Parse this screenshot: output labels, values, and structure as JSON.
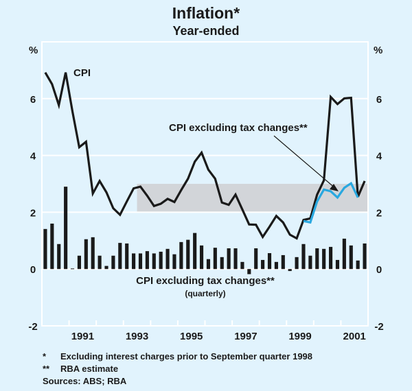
{
  "chart_data": {
    "type": "line",
    "title": "Inflation*",
    "subtitle": "Year-ended",
    "ylabel_left": "%",
    "ylabel_right": "%",
    "ylim": [
      -2,
      8
    ],
    "yticks": [
      -2,
      0,
      2,
      4,
      6
    ],
    "xlim": [
      1990.0,
      2002.0
    ],
    "xtick_labels": [
      "1991",
      "1993",
      "1995",
      "1997",
      "1999",
      "2001"
    ],
    "grid": true,
    "frequency": "quarterly",
    "start_quarter": "1990 Q1",
    "target_band": {
      "from": 2,
      "to": 3,
      "start": "1993 Q3",
      "end": "2001 Q4",
      "color": "#d2d5d9"
    },
    "series": [
      {
        "name": "CPI",
        "kind": "line",
        "color": "#1a1a1a",
        "start_index": 0,
        "values": [
          6.92,
          6.51,
          5.77,
          6.92,
          5.55,
          4.29,
          4.48,
          2.66,
          3.1,
          2.7,
          2.14,
          1.91,
          2.38,
          2.84,
          2.9,
          2.58,
          2.22,
          2.3,
          2.47,
          2.36,
          2.78,
          3.18,
          3.78,
          4.1,
          3.5,
          3.18,
          2.34,
          2.26,
          2.62,
          2.1,
          1.57,
          1.56,
          1.13,
          1.49,
          1.87,
          1.64,
          1.21,
          1.08,
          1.73,
          1.78,
          2.62,
          3.12,
          6.06,
          5.81,
          6.01,
          6.03,
          2.54,
          3.1
        ]
      },
      {
        "name": "CPI excluding tax changes**",
        "kind": "line",
        "color": "#29a8e0",
        "start_index": 38,
        "values": [
          1.69,
          1.64,
          2.38,
          2.8,
          2.74,
          2.52,
          2.86,
          3.02,
          2.52
        ]
      },
      {
        "name": "CPI excluding tax changes** (quarterly)",
        "kind": "bar",
        "color": "#1a1a1a",
        "start_index": 0,
        "values": [
          1.41,
          1.6,
          0.88,
          2.9,
          0.02,
          0.47,
          1.05,
          1.12,
          0.47,
          0.11,
          0.47,
          0.92,
          0.9,
          0.55,
          0.55,
          0.63,
          0.55,
          0.61,
          0.71,
          0.52,
          0.95,
          1.03,
          1.27,
          0.83,
          0.35,
          0.75,
          0.42,
          0.73,
          0.73,
          0.25,
          -0.18,
          0.73,
          0.32,
          0.56,
          0.25,
          0.49,
          -0.07,
          0.42,
          0.88,
          0.47,
          0.73,
          0.71,
          0.78,
          0.32,
          1.07,
          0.83,
          0.3,
          0.9
        ]
      }
    ],
    "annotations": {
      "cpi_label": "CPI",
      "ex_tax_label": "CPI excluding tax changes**",
      "bar_label": "CPI excluding tax changes**",
      "bar_sublabel": "(quarterly)"
    }
  },
  "footnotes": [
    {
      "mark": "*",
      "text": "Excluding interest charges prior to September quarter 1998"
    },
    {
      "mark": "**",
      "text": "RBA estimate"
    }
  ],
  "sources": "Sources: ABS; RBA"
}
